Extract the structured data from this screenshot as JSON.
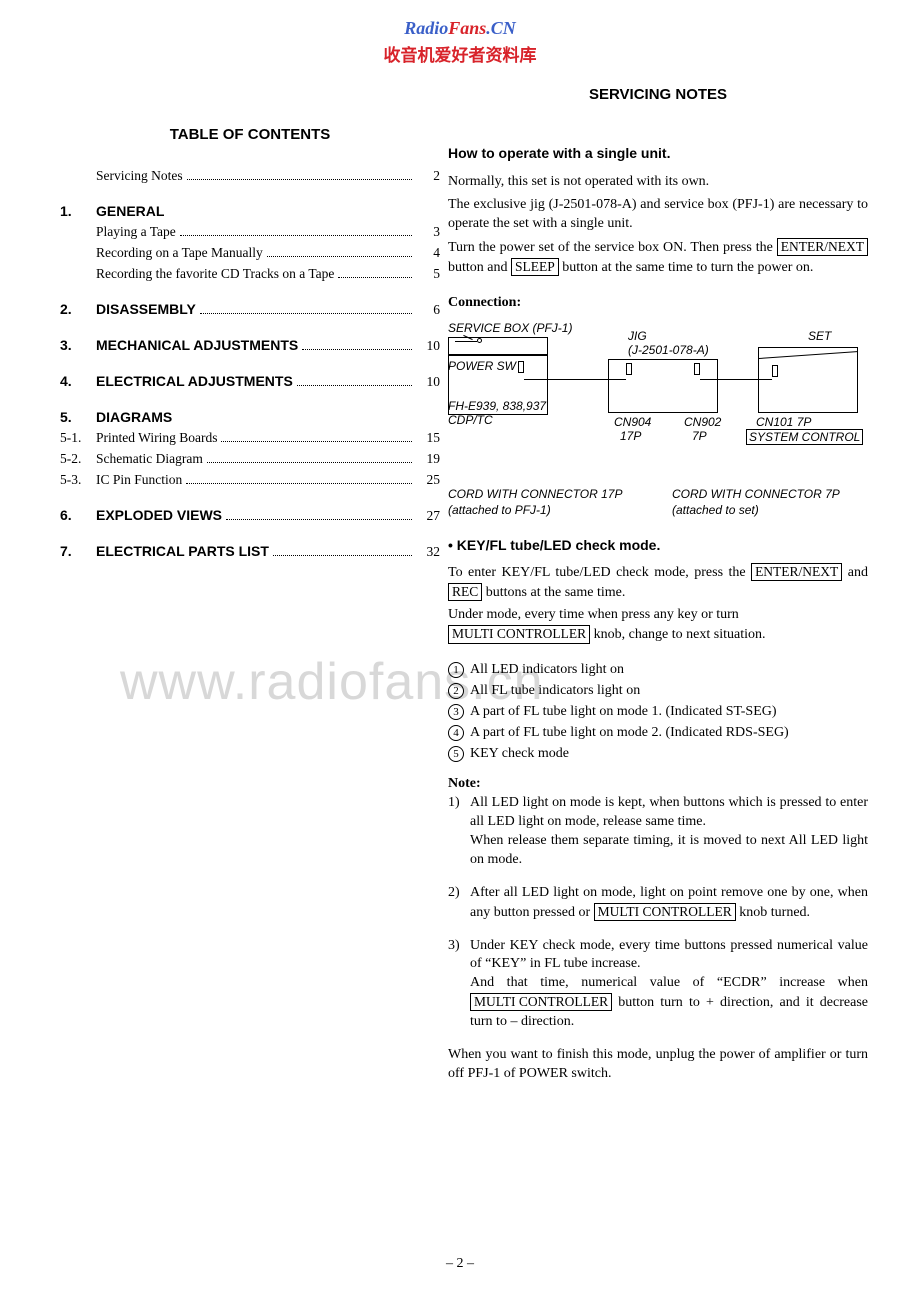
{
  "header": {
    "line1a": "Radio",
    "line1b": "Fans",
    "line1c": ".CN",
    "line2": "收音机爱好者资料库"
  },
  "watermark": "www.radiofans.cn",
  "page_number": "– 2 –",
  "left": {
    "title": "TABLE OF CONTENTS",
    "pre": {
      "label": "Servicing Notes",
      "page": "2"
    },
    "sections": [
      {
        "num": "1.",
        "label": "GENERAL",
        "page": "",
        "subs": [
          {
            "num": "",
            "label": "Playing a Tape",
            "page": "3"
          },
          {
            "num": "",
            "label": "Recording on a Tape Manually",
            "page": "4"
          },
          {
            "num": "",
            "label": "Recording the favorite CD Tracks on a Tape",
            "page": "5"
          }
        ]
      },
      {
        "num": "2.",
        "label": "DISASSEMBLY",
        "page": "6",
        "subs": []
      },
      {
        "num": "3.",
        "label": "MECHANICAL  ADJUSTMENTS",
        "page": "10",
        "subs": []
      },
      {
        "num": "4.",
        "label": "ELECTRICAL  ADJUSTMENTS",
        "page": "10",
        "subs": []
      },
      {
        "num": "5.",
        "label": "DIAGRAMS",
        "page": "",
        "subs": [
          {
            "num": "5-1.",
            "label": "Printed Wiring Boards",
            "page": "15"
          },
          {
            "num": "5-2.",
            "label": "Schematic Diagram",
            "page": "19"
          },
          {
            "num": "5-3.",
            "label": "IC Pin Function",
            "page": "25"
          }
        ]
      },
      {
        "num": "6.",
        "label": "EXPLODED  VIEWS",
        "page": "27",
        "subs": []
      },
      {
        "num": "7.",
        "label": "ELECTRICAL  PARTS  LIST",
        "page": "32",
        "subs": []
      }
    ]
  },
  "right": {
    "title": "SERVICING  NOTES",
    "sub1": "How to operate with a single unit.",
    "p1": "Normally, this set is not operated with its own.",
    "p2": "The exclusive jig (J-2501-078-A) and service box (PFJ-1) are necessary to operate the set with a single unit.",
    "p3a": "Turn the power set of the service box ON.  Then press the ",
    "p3_btn1": "ENTER/NEXT",
    "p3b": " button and ",
    "p3_btn2": "SLEEP",
    "p3c": " button at the same time to turn the power on.",
    "connection_label": "Connection:",
    "diagram": {
      "service_box": "SERVICE BOX (PFJ-1)",
      "power_sw": "POWER SW",
      "fh": "FH-E939, 838,937",
      "cdptc": "CDP/TC",
      "jig": "JIG",
      "jig_model": "(J-2501-078-A)",
      "cn904": "CN904",
      "p17": "17P",
      "cn902": "CN902",
      "p7": "7P",
      "set": "SET",
      "cn101": "CN101  7P",
      "sysctrl": "SYSTEM CONTROL",
      "cord17": "CORD WITH CONNECTOR 17P",
      "cord17b": "(attached to PFJ-1)",
      "cord7": "CORD WITH CONNECTOR 7P",
      "cord7b": "(attached to set)"
    },
    "sub2": "• KEY/FL tube/LED check mode.",
    "k1a": "To enter KEY/FL tube/LED check mode, press the ",
    "k1_btn1": "ENTER/NEXT",
    "k1b": " and ",
    "k1_btn2": "REC",
    "k1c": " buttons at the same time.",
    "k2a": "Under mode, every time when press any key or turn ",
    "k2_btn": "MULTI CONTROLLER",
    "k2b": " knob, change to next situation.",
    "modes": [
      "All LED indicators light on",
      "All FL tube indicators light on",
      "A part of FL tube light on mode 1.  (Indicated ST-SEG)",
      "A part of FL tube light on mode 2.  (Indicated RDS-SEG)",
      "KEY check mode"
    ],
    "note_hdr": "Note:",
    "notes": [
      {
        "n": "1)",
        "t": "All LED light on mode is kept, when buttons which is pressed to enter all LED light on mode, release same time.\nWhen release them separate timing, it is moved to next All LED light on mode."
      },
      {
        "n": "2)",
        "ta": "After all LED light on mode, light on point remove one by one, when any button pressed or ",
        "btn": "MULTI CONTROLLER",
        "tb": " knob turned."
      },
      {
        "n": "3)",
        "ta": "Under KEY check mode, every time buttons pressed numerical value of “KEY” in FL tube increase.\nAnd that time, numerical value of “ECDR” increase when ",
        "btn": "MULTI CONTROLLER",
        "tb": " button turn to + direction, and it decrease turn to – direction."
      }
    ],
    "finish": "When you want to finish this mode, unplug the power of amplifier or turn off PFJ-1 of POWER switch."
  }
}
